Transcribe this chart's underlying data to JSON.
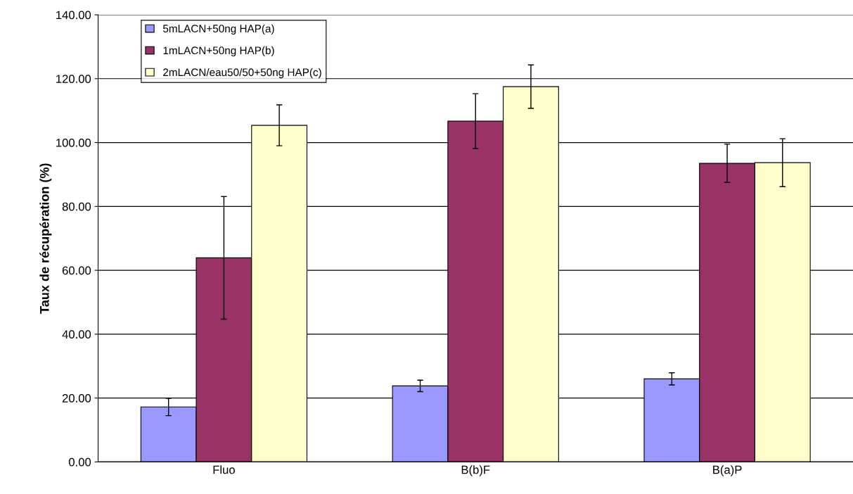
{
  "chart_data": {
    "type": "bar",
    "ylabel": "Taux de récupération (%)",
    "categories": [
      "Fluo",
      "B(b)F",
      "B(a)P"
    ],
    "series": [
      {
        "name": "5mLACN+50ng HAP(a)",
        "color": "#9999ff",
        "values": [
          17.2,
          23.8,
          26.0
        ],
        "errors": [
          2.7,
          1.8,
          1.9
        ]
      },
      {
        "name": "1mLACN+50ng HAP(b)",
        "color": "#993366",
        "values": [
          63.9,
          106.7,
          93.5
        ],
        "errors": [
          19.2,
          8.6,
          6.0
        ]
      },
      {
        "name": "2mLACN/eau50/50+50ng HAP(c)",
        "color": "#ffffcc",
        "values": [
          105.4,
          117.5,
          93.7
        ],
        "errors": [
          6.4,
          6.8,
          7.5
        ]
      }
    ],
    "ylim": [
      0,
      140
    ],
    "yticks": [
      {
        "value": 0,
        "label": "0.00"
      },
      {
        "value": 20,
        "label": "20.00"
      },
      {
        "value": 40,
        "label": "40.00"
      },
      {
        "value": 60,
        "label": "60.00"
      },
      {
        "value": 80,
        "label": "80.00"
      },
      {
        "value": 100,
        "label": "100.00"
      },
      {
        "value": 120,
        "label": "120.00"
      },
      {
        "value": 140,
        "label": "140.00"
      }
    ],
    "grid": "y",
    "legend": "top left"
  }
}
